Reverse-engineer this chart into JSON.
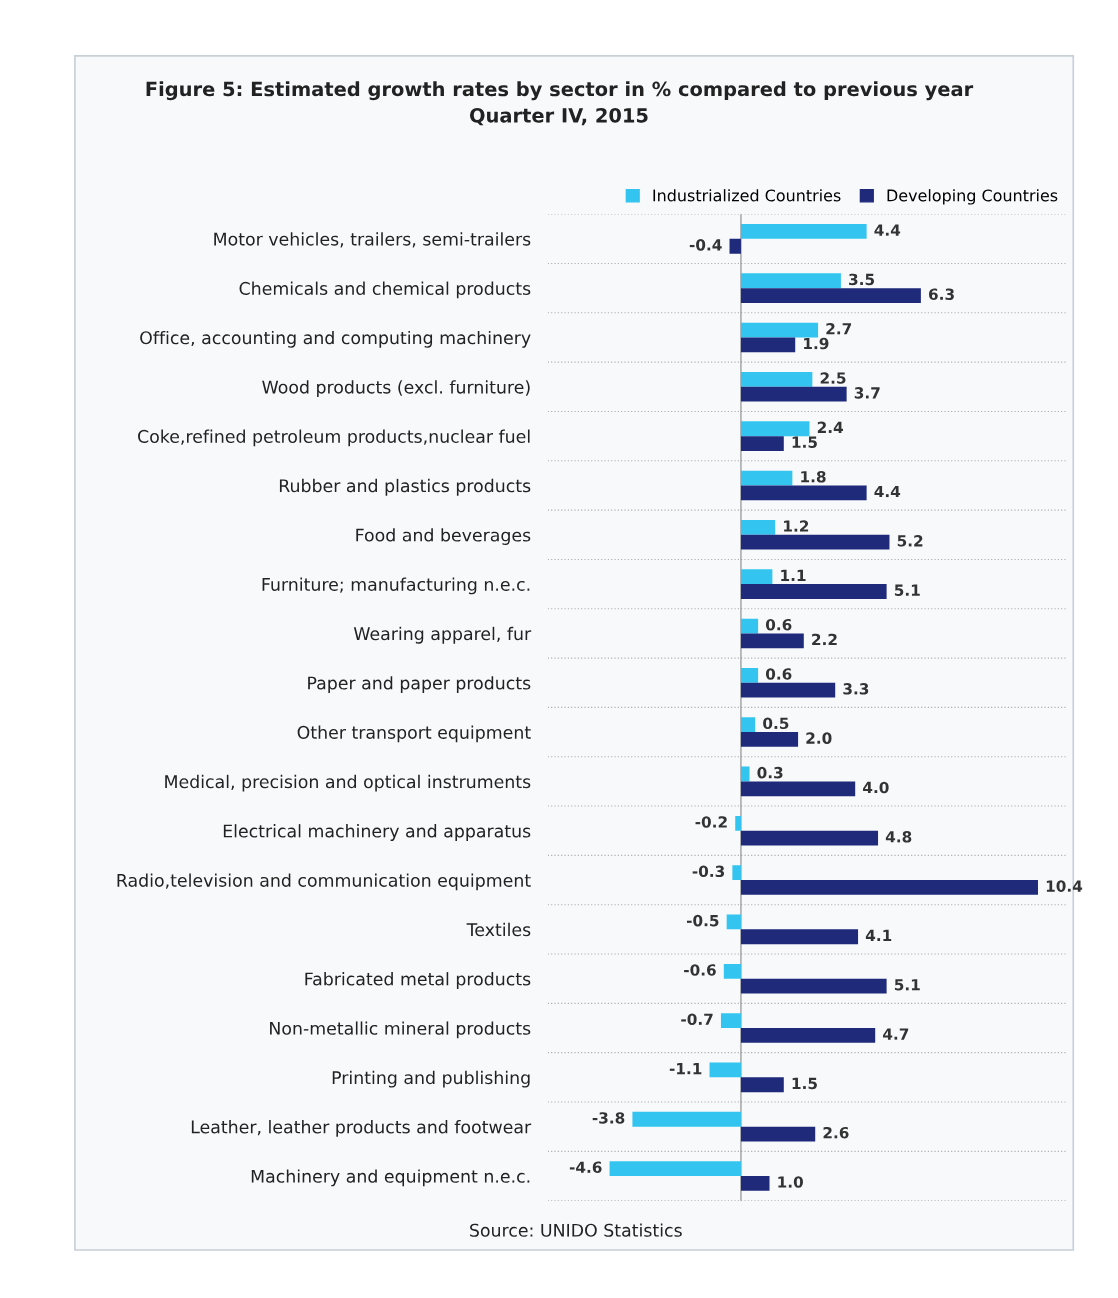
{
  "chart_data": {
    "type": "bar",
    "orientation": "horizontal",
    "title": "Figure 5: Estimated growth rates by sector in % compared to previous year\nQuarter IV, 2015",
    "categories": [
      "Motor vehicles, trailers, semi-trailers",
      "Chemicals and chemical products",
      "Office, accounting and computing machinery",
      "Wood products (excl. furniture)",
      "Coke,refined petroleum products,nuclear fuel",
      "Rubber and plastics products",
      "Food and beverages",
      "Furniture; manufacturing n.e.c.",
      "Wearing apparel, fur",
      "Paper and paper products",
      "Other transport equipment",
      "Medical, precision and optical instruments",
      "Electrical machinery and apparatus",
      "Radio,television and communication equipment",
      "Textiles",
      "Fabricated metal products",
      "Non-metallic mineral products",
      "Printing and publishing",
      "Leather, leather products and footwear",
      "Machinery and equipment n.e.c."
    ],
    "series": [
      {
        "name": "Industrialized Countries",
        "color": "#33c4f0",
        "values": [
          4.4,
          3.5,
          2.7,
          2.5,
          2.4,
          1.8,
          1.2,
          1.1,
          0.6,
          0.6,
          0.5,
          0.3,
          -0.2,
          -0.3,
          -0.5,
          -0.6,
          -0.7,
          -1.1,
          -3.8,
          -4.6
        ],
        "value_labels": [
          "4.4",
          "3.5",
          "2.7",
          "2.5",
          "2.4",
          "1.8",
          "1.2",
          "1.1",
          "0.6",
          "0.6",
          "0.5",
          "0.3",
          "-0.2",
          "-0.3",
          "-0.5",
          "-0.6",
          "-0.7",
          "-1.1",
          "-3.8",
          "-4.6"
        ]
      },
      {
        "name": "Developing Countries",
        "color": "#1f2a7a",
        "values": [
          -0.4,
          6.3,
          1.9,
          3.7,
          1.5,
          4.4,
          5.2,
          5.1,
          2.2,
          3.3,
          2.0,
          4.0,
          4.8,
          10.4,
          4.1,
          5.1,
          4.7,
          1.5,
          2.6,
          1.0
        ],
        "value_labels": [
          "-0.4",
          "6.3",
          "1.9",
          "3.7",
          "1.5",
          "4.4",
          "5.2",
          "5.1",
          "2.2",
          "3.3",
          "2.0",
          "4.0",
          "4.8",
          "10.4",
          "4.1",
          "5.1",
          "4.7",
          "1.5",
          "2.6",
          "1.0"
        ]
      }
    ],
    "grid": "y",
    "legend": "top right",
    "annotations": [
      "Source: UNIDO Statistics"
    ]
  }
}
